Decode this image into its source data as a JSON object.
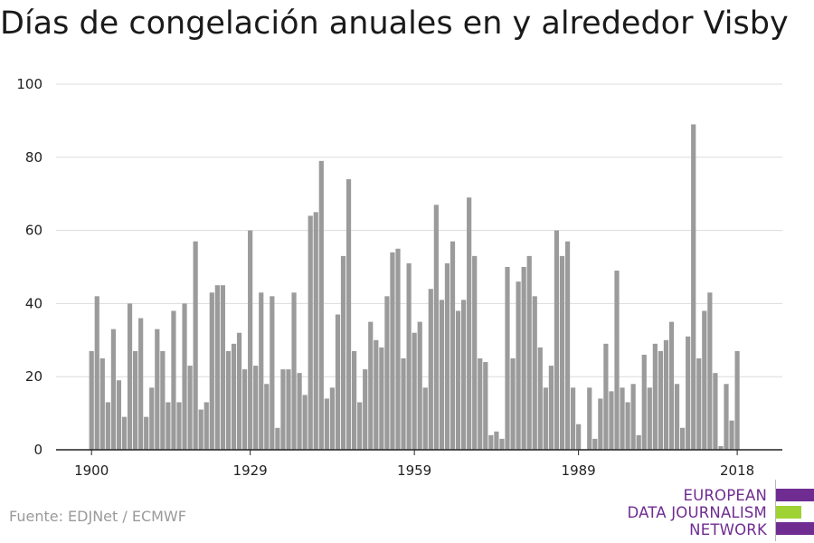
{
  "chart_data": {
    "type": "bar",
    "title": "Días de congelación anuales en y alrededor Visby",
    "xlabel": "",
    "ylabel": "",
    "x_start": 1900,
    "x_ticks": [
      1900,
      1929,
      1959,
      1989,
      2018
    ],
    "y_ticks": [
      0,
      20,
      40,
      60,
      80,
      100
    ],
    "ylim": [
      0,
      100
    ],
    "grid": true,
    "bar_color": "#9b9b9b",
    "values": [
      27,
      42,
      25,
      13,
      33,
      19,
      9,
      40,
      27,
      36,
      9,
      17,
      33,
      27,
      13,
      38,
      13,
      40,
      23,
      57,
      11,
      13,
      43,
      45,
      45,
      27,
      29,
      32,
      22,
      60,
      23,
      43,
      18,
      42,
      6,
      22,
      22,
      43,
      21,
      15,
      64,
      65,
      79,
      14,
      17,
      37,
      53,
      74,
      27,
      13,
      22,
      35,
      30,
      28,
      42,
      54,
      55,
      25,
      51,
      32,
      35,
      17,
      44,
      67,
      41,
      51,
      57,
      38,
      41,
      69,
      53,
      25,
      24,
      4,
      5,
      3,
      50,
      25,
      46,
      50,
      53,
      42,
      28,
      17,
      23,
      60,
      53,
      57,
      17,
      7,
      0,
      17,
      3,
      14,
      29,
      16,
      49,
      17,
      13,
      18,
      4,
      26,
      17,
      29,
      27,
      30,
      35,
      18,
      6,
      31,
      89,
      25,
      38,
      43,
      21,
      1,
      18,
      8,
      27
    ]
  },
  "source": "Fuente: EDJNet / ECMWF",
  "logo": {
    "lines": [
      "EUROPEAN",
      "DATA JOURNALISM",
      "NETWORK"
    ],
    "colors": [
      "#6f2c91",
      "#9fd233",
      "#6f2c91"
    ]
  }
}
